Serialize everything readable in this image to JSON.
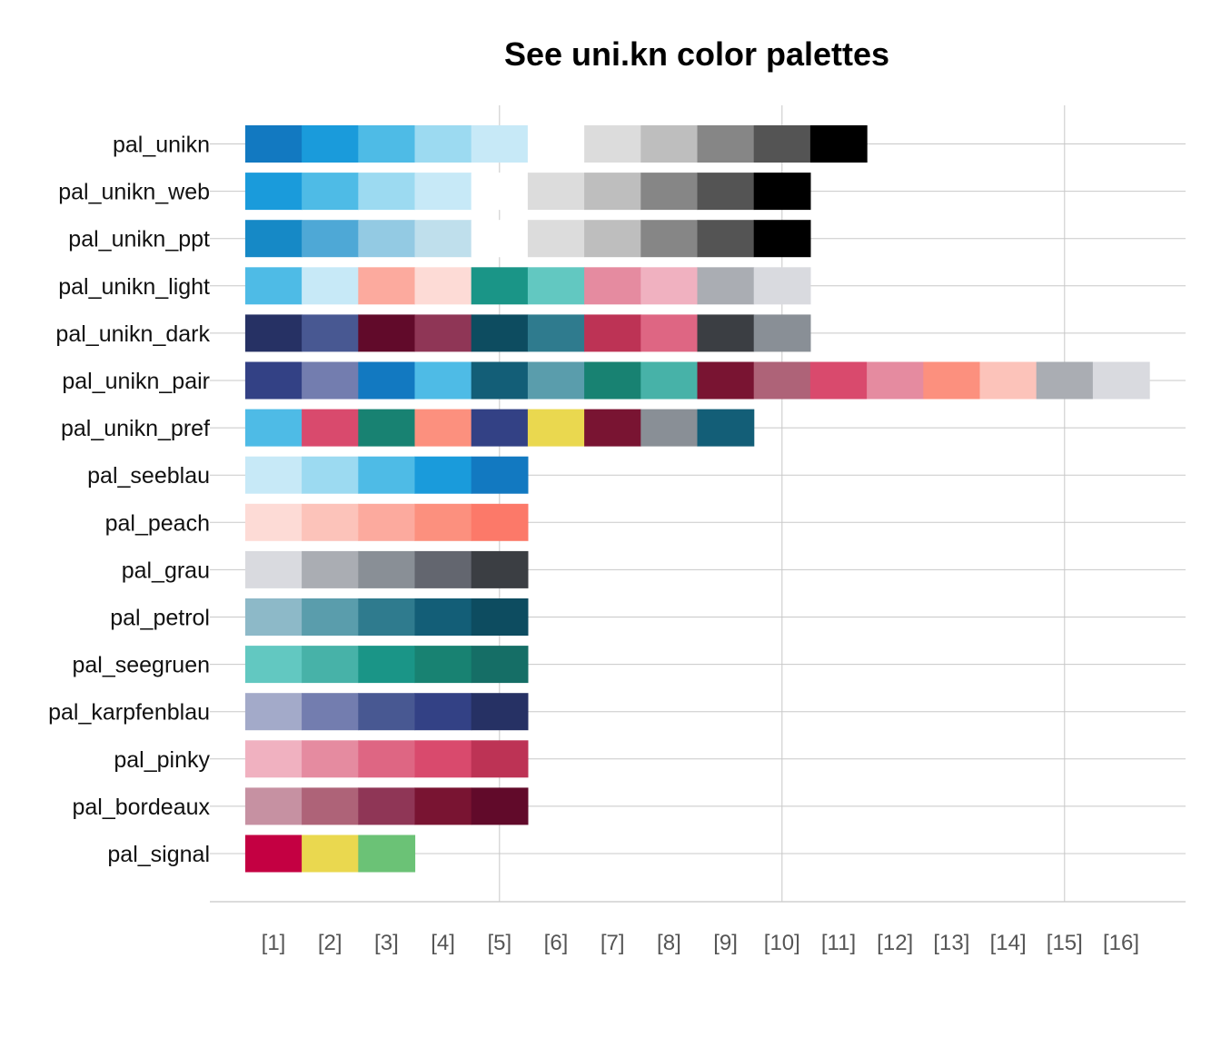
{
  "chart_data": {
    "type": "heatmap",
    "title": "See uni.kn color palettes",
    "xlabel": "",
    "ylabel": "",
    "x_tick_labels": [
      "[1]",
      "[2]",
      "[3]",
      "[4]",
      "[5]",
      "[6]",
      "[7]",
      "[8]",
      "[9]",
      "[10]",
      "[11]",
      "[12]",
      "[13]",
      "[14]",
      "[15]",
      "[16]"
    ],
    "x_gridlines_at": [
      5,
      10,
      15
    ],
    "grid": true,
    "legend": "none",
    "palettes": [
      {
        "name": "pal_unikn",
        "colors": [
          "#1279C1",
          "#1A9BDB",
          "#4EBBE6",
          "#9CDAF1",
          "#C7E9F7",
          "#FFFFFF",
          "#DCDCDC",
          "#BEBEBE",
          "#868686",
          "#545454",
          "#000000"
        ]
      },
      {
        "name": "pal_unikn_web",
        "colors": [
          "#1A9BDB",
          "#4EBBE6",
          "#9CDAF1",
          "#C7E9F7",
          "#FFFFFF",
          "#DCDCDC",
          "#BEBEBE",
          "#868686",
          "#545454",
          "#000000"
        ]
      },
      {
        "name": "pal_unikn_ppt",
        "colors": [
          "#1689C6",
          "#4EA8D6",
          "#93CAE3",
          "#BFDFEC",
          "#FFFFFF",
          "#DCDCDC",
          "#BEBEBE",
          "#868686",
          "#545454",
          "#000000"
        ]
      },
      {
        "name": "pal_unikn_light",
        "colors": [
          "#4EBBE6",
          "#C7E9F7",
          "#FCAA9E",
          "#FDDBD6",
          "#1A9587",
          "#62C8C1",
          "#E58BA0",
          "#F0B1C0",
          "#AAADB3",
          "#D9DADF"
        ]
      },
      {
        "name": "pal_unikn_dark",
        "colors": [
          "#263164",
          "#485892",
          "#610A2A",
          "#8F3656",
          "#0D4C60",
          "#2F7B8E",
          "#BD3355",
          "#DE6683",
          "#3B3E43",
          "#898F96"
        ]
      },
      {
        "name": "pal_unikn_pair",
        "colors": [
          "#334185",
          "#737DAF",
          "#1279C1",
          "#4EBBE6",
          "#135E77",
          "#5A9DAC",
          "#188272",
          "#47B2A8",
          "#791432",
          "#AE6378",
          "#D94A6D",
          "#E58BA0",
          "#FC907E",
          "#FCC3BA",
          "#AAADB3",
          "#D9DADF"
        ]
      },
      {
        "name": "pal_unikn_pref",
        "colors": [
          "#4EBBE6",
          "#D94A6D",
          "#188272",
          "#FC907E",
          "#334185",
          "#EAD84F",
          "#791432",
          "#898F96",
          "#135E77"
        ]
      },
      {
        "name": "pal_seeblau",
        "colors": [
          "#C7E9F7",
          "#9CDAF1",
          "#4EBBE6",
          "#1A9BDB",
          "#1279C1"
        ]
      },
      {
        "name": "pal_peach",
        "colors": [
          "#FDDBD6",
          "#FCC3BA",
          "#FCAA9E",
          "#FC907E",
          "#FC7969"
        ]
      },
      {
        "name": "pal_grau",
        "colors": [
          "#D9DADF",
          "#AAADB3",
          "#898F96",
          "#63666F",
          "#3B3E43"
        ]
      },
      {
        "name": "pal_petrol",
        "colors": [
          "#8DB9C8",
          "#5A9DAC",
          "#2F7B8E",
          "#135E77",
          "#0D4C60"
        ]
      },
      {
        "name": "pal_seegruen",
        "colors": [
          "#62C8C1",
          "#47B2A8",
          "#1A9587",
          "#188272",
          "#156E66"
        ]
      },
      {
        "name": "pal_karpfenblau",
        "colors": [
          "#A3AAC9",
          "#737DAF",
          "#485892",
          "#334185",
          "#263164"
        ]
      },
      {
        "name": "pal_pinky",
        "colors": [
          "#F0B1C0",
          "#E58BA0",
          "#DE6683",
          "#D94A6D",
          "#BD3355"
        ]
      },
      {
        "name": "pal_bordeaux",
        "colors": [
          "#C691A2",
          "#AE6378",
          "#8F3656",
          "#791432",
          "#610A2A"
        ]
      },
      {
        "name": "pal_signal",
        "colors": [
          "#C40042",
          "#EAD84F",
          "#6BC276"
        ]
      }
    ]
  }
}
